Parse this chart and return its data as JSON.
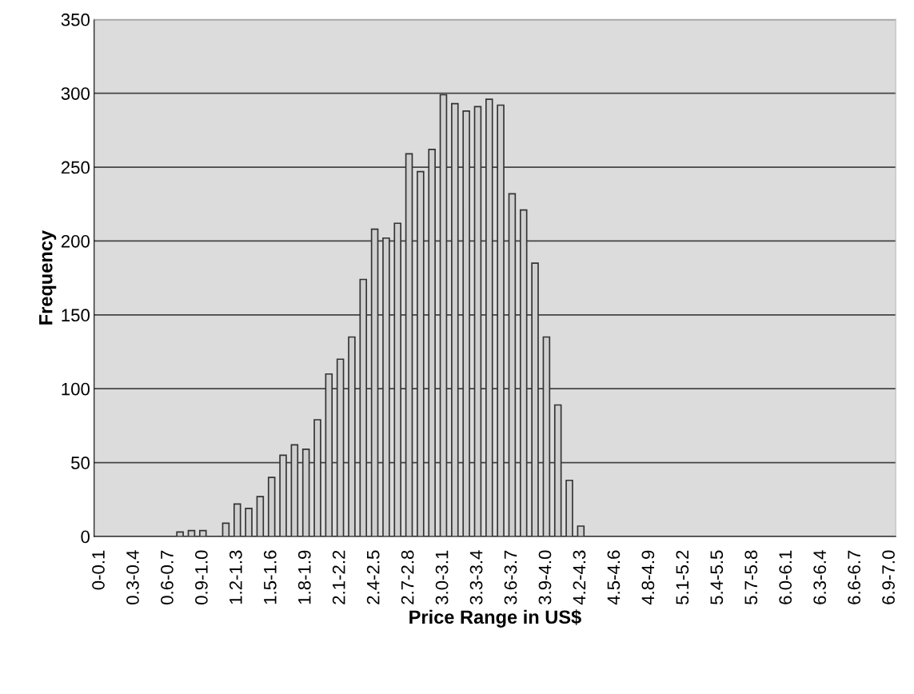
{
  "chart_data": {
    "type": "bar",
    "xlabel": "Price Range in US$",
    "ylabel": "Frequency",
    "categories": [
      "0-0.1",
      null,
      null,
      "0.3-0.4",
      null,
      null,
      "0.6-0.7",
      null,
      null,
      "0.9-1.0",
      null,
      null,
      "1.2-1.3",
      null,
      null,
      "1.5-1.6",
      null,
      null,
      "1.8-1.9",
      null,
      null,
      "2.1-2.2",
      null,
      null,
      "2.4-2.5",
      null,
      null,
      "2.7-2.8",
      null,
      null,
      "3.0-3.1",
      null,
      null,
      "3.3-3.4",
      null,
      null,
      "3.6-3.7",
      null,
      null,
      "3.9-4.0",
      null,
      null,
      "4.2-4.3",
      null,
      null,
      "4.5-4.6",
      null,
      null,
      "4.8-4.9",
      null,
      null,
      "5.1-5.2",
      null,
      null,
      "5.4-5.5",
      null,
      null,
      "5.7-5.8",
      null,
      null,
      "6.0-6.1",
      null,
      null,
      "6.3-6.4",
      null,
      null,
      "6.6-6.7",
      null,
      null,
      "6.9-7.0"
    ],
    "values": [
      0,
      0,
      0,
      0,
      0,
      0,
      0,
      3,
      4,
      4,
      0,
      9,
      22,
      19,
      27,
      40,
      55,
      62,
      59,
      79,
      110,
      120,
      135,
      174,
      208,
      202,
      212,
      259,
      247,
      262,
      299,
      293,
      288,
      291,
      296,
      292,
      232,
      221,
      185,
      135,
      89,
      38,
      7,
      0,
      0,
      0,
      0,
      0,
      0,
      0,
      0,
      0,
      0,
      0,
      0,
      0,
      0,
      0,
      0,
      0,
      0,
      0,
      0,
      0,
      0,
      0,
      0,
      0,
      0,
      0
    ],
    "color": "#cfcfcf",
    "ylim": [
      0,
      350
    ],
    "yticks": [
      0,
      50,
      100,
      150,
      200,
      250,
      300,
      350
    ],
    "grid": "y"
  }
}
